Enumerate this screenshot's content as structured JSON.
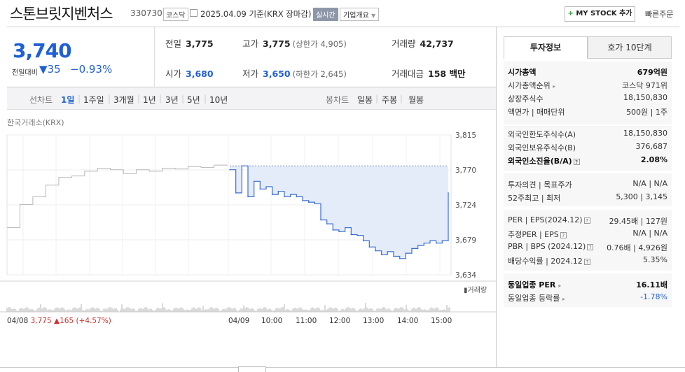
{
  "header": {
    "name": "스톤브릿지벤처스",
    "code": "330730",
    "market": "코스닥",
    "date": "2025.04.09",
    "basis": "기준(KRX 장마감)",
    "realtime": "실시간",
    "corp_overview": "기업개요",
    "mystock": "MY STOCK 추가",
    "mystock_plus": "+",
    "quick_order": "빠른주문"
  },
  "price": {
    "current": "3,740",
    "diff_label": "전일대비",
    "diff_value": "▼35",
    "diff_pct": "−0.93%",
    "prev_label": "전일",
    "prev": "3,775",
    "high_label": "고가",
    "high": "3,775",
    "upper_limit": "(상한가 4,905)",
    "volume_label": "거래량",
    "volume": "42,737",
    "open_label": "시가",
    "open": "3,680",
    "low_label": "저가",
    "low": "3,650",
    "lower_limit": "(하한가 2,645)",
    "amount_label": "거래대금",
    "amount": "158 백만"
  },
  "tabs": {
    "line_label": "선차트",
    "line_items": [
      "1일",
      "1주일",
      "3개월",
      "1년",
      "3년",
      "5년",
      "10년"
    ],
    "candle_label": "봉차트",
    "candle_items": [
      "일봉",
      "주봉",
      "월봉"
    ],
    "selected": "1일"
  },
  "source": "한국거래소(KRX)",
  "chart_data": {
    "type": "line",
    "y_ticks": [
      "3,815",
      "3,770",
      "3,724",
      "3,679",
      "3,634"
    ],
    "ylim": [
      3634,
      3815
    ],
    "volume_label": "거래량",
    "x_tick_labels": [
      "04/08",
      "04/09",
      "10:00",
      "11:00",
      "12:00",
      "13:00",
      "14:00",
      "15:00"
    ],
    "prev_day_footer": {
      "date": "04/08",
      "close": "3,775",
      "change": "▲165",
      "pct": "(+4.57%)"
    },
    "prev_day": [
      3695,
      3725,
      3735,
      3750,
      3760,
      3762,
      3768,
      3772,
      3770,
      3765,
      3770,
      3768,
      3772,
      3771,
      3774,
      3773,
      3776,
      3775
    ],
    "today": [
      3770,
      3740,
      3775,
      3735,
      3755,
      3745,
      3748,
      3738,
      3742,
      3735,
      3738,
      3735,
      3730,
      3728,
      3726,
      3705,
      3700,
      3692,
      3690,
      3695,
      3686,
      3685,
      3678,
      3670,
      3665,
      3660,
      3664,
      3658,
      3655,
      3662,
      3668,
      3672,
      3675,
      3678,
      3675,
      3678,
      3740
    ],
    "grid": true,
    "colors": {
      "prev": "#b7b7b7",
      "today": "#3a6fd3",
      "fill": "#e5ecf9",
      "ref": "#7a90c9"
    }
  },
  "right_tabs": {
    "info": "투자정보",
    "hoga": "호가 10단계"
  },
  "info": {
    "market_cap_label": "시가총액",
    "market_cap": "679억원",
    "rank_label": "시가총액순위",
    "rank": "코스닥 971위",
    "listed_label": "상장주식수",
    "listed": "18,150,830",
    "face_label": "액면가 | 매매단위",
    "face": "500원 | 1주",
    "foreign_limit_label": "외국인한도주식수(A)",
    "foreign_limit": "18,150,830",
    "foreign_hold_label": "외국인보유주식수(B)",
    "foreign_hold": "376,687",
    "foreign_ratio_label": "외국인소진율(B/A)",
    "foreign_ratio": "2.08%",
    "opinion_label": "투자의견 | 목표주가",
    "opinion": "N/A | N/A",
    "wk52_label": "52주최고 | 최저",
    "wk52": "5,300 | 3,145",
    "per_label": "PER | EPS(2024.12)",
    "per": "29.45배 | 127원",
    "est_per_label": "추정PER | EPS",
    "est_per": "N/A | N/A",
    "pbr_label": "PBR | BPS (2024.12)",
    "pbr": "0.76배 | 4,926원",
    "div_label": "배당수익률 | 2024.12",
    "div": "5.35%",
    "ind_per_label": "동일업종 PER",
    "ind_per": "16.11배",
    "ind_rate_label": "동일업종 등락률",
    "ind_rate": "-1.78%"
  }
}
